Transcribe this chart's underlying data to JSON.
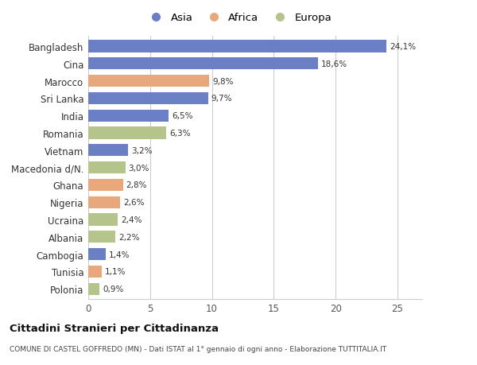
{
  "categories": [
    "Bangladesh",
    "Cina",
    "Marocco",
    "Sri Lanka",
    "India",
    "Romania",
    "Vietnam",
    "Macedonia d/N.",
    "Ghana",
    "Nigeria",
    "Ucraina",
    "Albania",
    "Cambogia",
    "Tunisia",
    "Polonia"
  ],
  "values": [
    24.1,
    18.6,
    9.8,
    9.7,
    6.5,
    6.3,
    3.2,
    3.0,
    2.8,
    2.6,
    2.4,
    2.2,
    1.4,
    1.1,
    0.9
  ],
  "labels": [
    "24,1%",
    "18,6%",
    "9,8%",
    "9,7%",
    "6,5%",
    "6,3%",
    "3,2%",
    "3,0%",
    "2,8%",
    "2,6%",
    "2,4%",
    "2,2%",
    "1,4%",
    "1,1%",
    "0,9%"
  ],
  "continents": [
    "Asia",
    "Asia",
    "Africa",
    "Asia",
    "Asia",
    "Europa",
    "Asia",
    "Europa",
    "Africa",
    "Africa",
    "Europa",
    "Europa",
    "Asia",
    "Africa",
    "Europa"
  ],
  "colors": {
    "Asia": "#6b7fc4",
    "Africa": "#e8a87c",
    "Europa": "#b5c48a"
  },
  "legend_labels": [
    "Asia",
    "Africa",
    "Europa"
  ],
  "title": "Cittadini Stranieri per Cittadinanza",
  "subtitle": "COMUNE DI CASTEL GOFFREDO (MN) - Dati ISTAT al 1° gennaio di ogni anno - Elaborazione TUTTITALIA.IT",
  "xlim": [
    0,
    27
  ],
  "xticks": [
    0,
    5,
    10,
    15,
    20,
    25
  ],
  "background_color": "#ffffff",
  "grid_color": "#cccccc",
  "bar_height": 0.7
}
